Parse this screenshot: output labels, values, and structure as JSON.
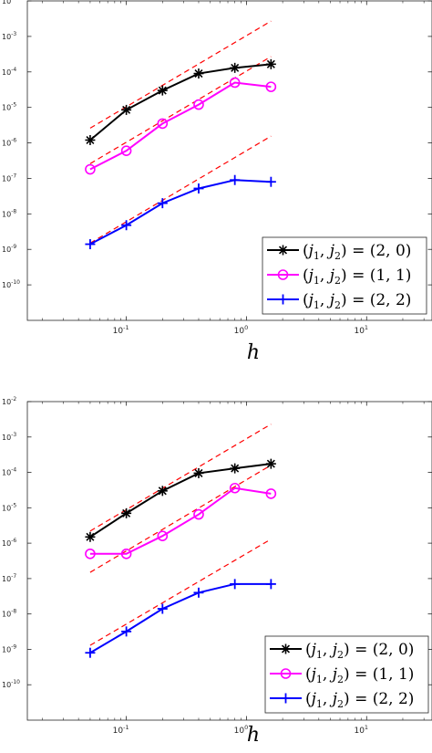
{
  "chart_data": [
    {
      "type": "line",
      "xlabel": "h",
      "xscale": "log",
      "yscale": "log",
      "xlim": [
        0.015,
        35
      ],
      "ylim": [
        1e-11,
        0.01
      ],
      "x_ticks": [
        {
          "v": 0.1,
          "label": "10",
          "exp": "-1"
        },
        {
          "v": 1,
          "label": "10",
          "exp": "0"
        },
        {
          "v": 10,
          "label": "10",
          "exp": "1"
        }
      ],
      "y_ticks": [
        {
          "v": 0.01,
          "label": "10",
          "exp": "-2"
        },
        {
          "v": 0.001,
          "label": "10",
          "exp": "-3"
        },
        {
          "v": 0.0001,
          "label": "10",
          "exp": "-4"
        },
        {
          "v": 1e-05,
          "label": "10",
          "exp": "-5"
        },
        {
          "v": 1e-06,
          "label": "10",
          "exp": "-6"
        },
        {
          "v": 1e-07,
          "label": "10",
          "exp": "-7"
        },
        {
          "v": 1e-08,
          "label": "10",
          "exp": "-8"
        },
        {
          "v": 1e-09,
          "label": "10",
          "exp": "-9"
        },
        {
          "v": 1e-10,
          "label": "10",
          "exp": "-10"
        }
      ],
      "legend_position": "bottom-right",
      "x": [
        0.05,
        0.1,
        0.2,
        0.4,
        0.8,
        1.6
      ],
      "series": [
        {
          "name": "(j1, j2) = (2, 0)",
          "legend": {
            "var": "j",
            "a": "1",
            "b": "2",
            "val": "= (2, 0)"
          },
          "color": "#000000",
          "marker": "asterisk",
          "values": [
            1.2e-06,
            8.5e-06,
            3e-05,
            9e-05,
            0.00013,
            0.000165
          ]
        },
        {
          "name": "(j1, j2) = (1, 1)",
          "legend": {
            "var": "j",
            "a": "1",
            "b": "2",
            "val": "= (1, 1)"
          },
          "color": "#ff00ff",
          "marker": "circle",
          "values": [
            1.8e-07,
            6e-07,
            3.5e-06,
            1.2e-05,
            5e-05,
            3.8e-05
          ]
        },
        {
          "name": "(j1, j2) = (2, 2)",
          "legend": {
            "var": "j",
            "a": "1",
            "b": "2",
            "val": "= (2, 2)"
          },
          "color": "#0000ff",
          "marker": "plus",
          "values": [
            1.4e-09,
            4.8e-09,
            2e-08,
            5.2e-08,
            9e-08,
            8e-08
          ]
        }
      ],
      "reference_lines": [
        {
          "style": "dashed",
          "color": "#ff0000",
          "x": [
            0.05,
            1.6
          ],
          "y": [
            2.6e-06,
            0.0027
          ]
        },
        {
          "style": "dashed",
          "color": "#ff0000",
          "x": [
            0.05,
            1.6
          ],
          "y": [
            2.6e-07,
            0.00027
          ]
        },
        {
          "style": "dashed",
          "color": "#ff0000",
          "x": [
            0.05,
            1.6
          ],
          "y": [
            1.5e-09,
            1.55e-06
          ]
        }
      ]
    },
    {
      "type": "line",
      "xlabel": "h",
      "xscale": "log",
      "yscale": "log",
      "xlim": [
        0.015,
        35
      ],
      "ylim": [
        1e-11,
        0.01
      ],
      "x_ticks": [
        {
          "v": 0.1,
          "label": "10",
          "exp": "-1"
        },
        {
          "v": 1,
          "label": "10",
          "exp": "0"
        },
        {
          "v": 10,
          "label": "10",
          "exp": "1"
        }
      ],
      "y_ticks": [
        {
          "v": 0.01,
          "label": "10",
          "exp": "-2"
        },
        {
          "v": 0.001,
          "label": "10",
          "exp": "-3"
        },
        {
          "v": 0.0001,
          "label": "10",
          "exp": "-4"
        },
        {
          "v": 1e-05,
          "label": "10",
          "exp": "-5"
        },
        {
          "v": 1e-06,
          "label": "10",
          "exp": "-6"
        },
        {
          "v": 1e-07,
          "label": "10",
          "exp": "-7"
        },
        {
          "v": 1e-08,
          "label": "10",
          "exp": "-8"
        },
        {
          "v": 1e-09,
          "label": "10",
          "exp": "-9"
        },
        {
          "v": 1e-10,
          "label": "10",
          "exp": "-10"
        }
      ],
      "legend_position": "bottom-right",
      "x": [
        0.05,
        0.1,
        0.2,
        0.4,
        0.8,
        1.6
      ],
      "series": [
        {
          "name": "(j1, j2) = (2, 0)",
          "legend": {
            "var": "j",
            "a": "1",
            "b": "2",
            "val": "= (2, 0)"
          },
          "color": "#000000",
          "marker": "asterisk",
          "values": [
            1.5e-06,
            7e-06,
            3e-05,
            9.5e-05,
            0.00013,
            0.000175
          ]
        },
        {
          "name": "(j1, j2) = (1, 1)",
          "legend": {
            "var": "j",
            "a": "1",
            "b": "2",
            "val": "= (1, 1)"
          },
          "color": "#ff00ff",
          "marker": "circle",
          "values": [
            5e-07,
            5e-07,
            1.6e-06,
            6.5e-06,
            3.6e-05,
            2.5e-05
          ]
        },
        {
          "name": "(j1, j2) = (2, 2)",
          "legend": {
            "var": "j",
            "a": "1",
            "b": "2",
            "val": "= (2, 2)"
          },
          "color": "#0000ff",
          "marker": "plus",
          "values": [
            8e-10,
            3.2e-09,
            1.4e-08,
            4e-08,
            7e-08,
            7e-08
          ]
        }
      ],
      "reference_lines": [
        {
          "style": "dashed",
          "color": "#ff0000",
          "x": [
            0.05,
            1.6
          ],
          "y": [
            2.2e-06,
            0.0023
          ]
        },
        {
          "style": "dashed",
          "color": "#ff0000",
          "x": [
            0.05,
            1.6
          ],
          "y": [
            1.5e-07,
            0.00016
          ]
        },
        {
          "style": "dashed",
          "color": "#ff0000",
          "x": [
            0.05,
            1.6
          ],
          "y": [
            1.3e-09,
            1.3e-06
          ]
        }
      ]
    }
  ]
}
